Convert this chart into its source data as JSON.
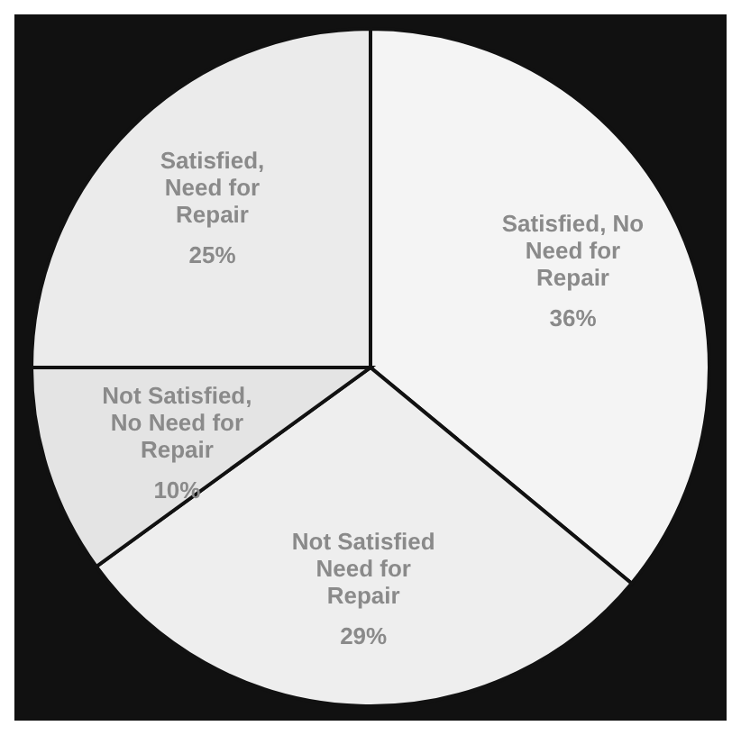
{
  "chart_data": {
    "type": "pie",
    "categories": [
      "Satisfied, No Need for Repair",
      "Not Satisfied Need for Repair",
      "Not Satisfied, No Need for Repair",
      "Satisfied, Need for Repair"
    ],
    "values": [
      36,
      29,
      10,
      25
    ],
    "colors": [
      "#f4f4f4",
      "#eeeeee",
      "#e4e4e4",
      "#ebebeb"
    ],
    "value_labels": [
      "36%",
      "29%",
      "10%",
      "25%"
    ],
    "legend": false
  }
}
